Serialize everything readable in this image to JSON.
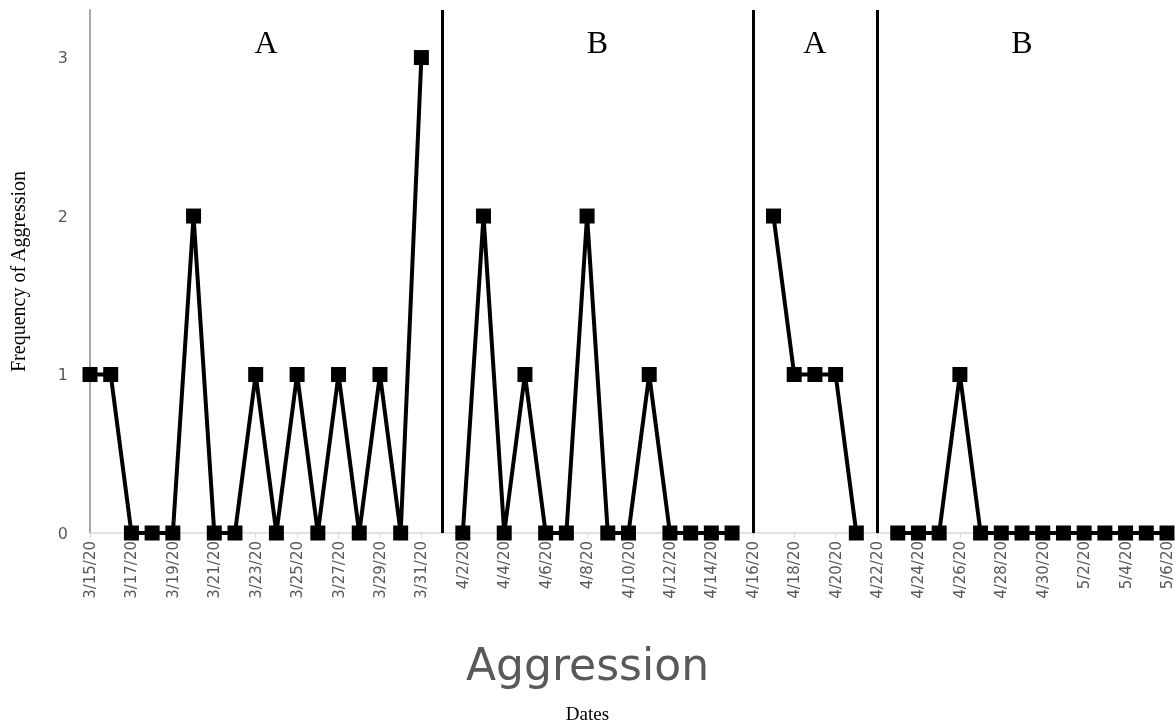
{
  "chart_data": {
    "type": "line",
    "title": "Aggression",
    "ylabel": "Frequency of Aggression",
    "x": [
      "--03-15",
      "--03-16",
      "--03-17",
      "--03-18",
      "--03-19",
      "--03-20",
      "--03-21",
      "--03-22",
      "--03-23",
      "--03-24",
      "--03-25",
      "--03-26",
      "--03-27",
      "--03-28",
      "--03-29",
      "--03-30",
      "--03-31",
      "--04-01",
      "--04-02",
      "--04-03",
      "--04-04",
      "--04-05",
      "--04-06",
      "--04-07",
      "--04-08",
      "--04-09",
      "--04-10",
      "--04-11",
      "--04-12",
      "--04-13",
      "--04-14",
      "--04-15",
      "--04-16",
      "--04-17",
      "--04-18",
      "--04-19",
      "--04-20",
      "--04-21",
      "--04-22",
      "--04-23",
      "--04-24",
      "--04-25",
      "--04-26",
      "--04-27",
      "--04-28",
      "--04-29",
      "--04-30",
      "--05-01",
      "--05-02",
      "--05-03",
      "--05-04",
      "--05-05",
      "--05-06"
    ],
    "series": [
      {
        "color": "#000000",
        "values": [
          1,
          1,
          0,
          0,
          0,
          2,
          0,
          0,
          1,
          0,
          1,
          0,
          1,
          0,
          1,
          0,
          3,
          null,
          0,
          2,
          0,
          1,
          0,
          0,
          2,
          0,
          0,
          1,
          0,
          0,
          0,
          0,
          null,
          2,
          1,
          1,
          1,
          0,
          null,
          0,
          0,
          0,
          1,
          0,
          0,
          0,
          0,
          0,
          0,
          0,
          0,
          0,
          0
        ]
      }
    ],
    "xlim": [
      "--03-15",
      "--05-06"
    ],
    "xticks": [
      {
        "value": "--03-15",
        "label": "3/15/20"
      },
      {
        "value": "--03-17",
        "label": "3/17/20"
      },
      {
        "value": "--03-19",
        "label": "3/19/20"
      },
      {
        "value": "--03-21",
        "label": "3/21/20"
      },
      {
        "value": "--03-23",
        "label": "3/23/20"
      },
      {
        "value": "--03-25",
        "label": "3/25/20"
      },
      {
        "value": "--03-27",
        "label": "3/27/20"
      },
      {
        "value": "--03-29",
        "label": "3/29/20"
      },
      {
        "value": "--03-31",
        "label": "3/31/20"
      },
      {
        "value": "--04-02",
        "label": "4/2/20"
      },
      {
        "value": "--04-04",
        "label": "4/4/20"
      },
      {
        "value": "--04-06",
        "label": "4/6/20"
      },
      {
        "value": "--04-08",
        "label": "4/8/20"
      },
      {
        "value": "--04-10",
        "label": "4/10/20"
      },
      {
        "value": "--04-12",
        "label": "4/12/20"
      },
      {
        "value": "--04-14",
        "label": "4/14/20"
      },
      {
        "value": "--04-16",
        "label": "4/16/20"
      },
      {
        "value": "--04-18",
        "label": "4/18/20"
      },
      {
        "value": "--04-20",
        "label": "4/20/20"
      },
      {
        "value": "--04-22",
        "label": "4/22/20"
      },
      {
        "value": "--04-24",
        "label": "4/24/20"
      },
      {
        "value": "--04-26",
        "label": "4/26/20"
      },
      {
        "value": "--04-28",
        "label": "4/28/20"
      },
      {
        "value": "--04-30",
        "label": "4/30/20"
      },
      {
        "value": "--05-02",
        "label": "5/2/20"
      },
      {
        "value": "--05-04",
        "label": "5/4/20"
      },
      {
        "value": "--05-06",
        "label": "5/6/20"
      }
    ],
    "ylim": [
      0,
      3.3
    ],
    "yticks": [
      0,
      1,
      2,
      3
    ],
    "ref_lines": [
      {
        "axis": "x",
        "value": "--04-01",
        "color": "#000000"
      },
      {
        "axis": "x",
        "value": "--04-16",
        "color": "#000000"
      },
      {
        "axis": "x",
        "value": "--04-22",
        "color": "#000000"
      }
    ],
    "annotations": [
      "A",
      "B",
      "A",
      "B",
      "Dates"
    ],
    "grid": false,
    "marker": "square",
    "line_style": "solid"
  }
}
